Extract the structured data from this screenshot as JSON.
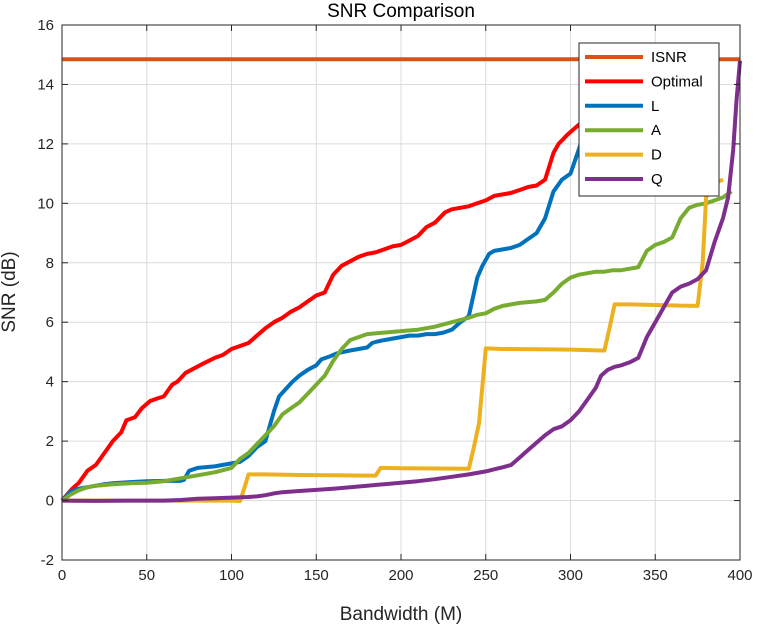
{
  "chart_data": {
    "type": "line",
    "title": "SNR Comparison",
    "xlabel": "Bandwidth (M)",
    "ylabel": "SNR (dB)",
    "xlim": [
      0,
      400
    ],
    "ylim": [
      -2,
      16
    ],
    "xticks": [
      0,
      50,
      100,
      150,
      200,
      250,
      300,
      350,
      400
    ],
    "yticks": [
      -2,
      0,
      2,
      4,
      6,
      8,
      10,
      12,
      14,
      16
    ],
    "grid": true,
    "legend_position": "top-right",
    "series": [
      {
        "name": "ISNR",
        "color": "#D95319",
        "x": [
          0,
          400
        ],
        "y": [
          14.85,
          14.85
        ]
      },
      {
        "name": "Optimal",
        "color": "#FF0000",
        "x": [
          0,
          3,
          6,
          10,
          15,
          20,
          25,
          30,
          35,
          38,
          43,
          47,
          52,
          57,
          60,
          65,
          68,
          73,
          78,
          83,
          90,
          95,
          100,
          105,
          110,
          116,
          120,
          125,
          130,
          135,
          140,
          145,
          150,
          155,
          160,
          165,
          170,
          175,
          180,
          185,
          190,
          195,
          200,
          205,
          210,
          215,
          220,
          226,
          230,
          235,
          240,
          245,
          250,
          255,
          260,
          265,
          270,
          275,
          280,
          285,
          290,
          293,
          298,
          302,
          306,
          310
        ],
        "y": [
          0,
          0.2,
          0.4,
          0.6,
          1.0,
          1.2,
          1.6,
          2.0,
          2.3,
          2.7,
          2.8,
          3.1,
          3.35,
          3.45,
          3.5,
          3.9,
          4.0,
          4.3,
          4.45,
          4.6,
          4.8,
          4.9,
          5.1,
          5.2,
          5.3,
          5.6,
          5.8,
          6.0,
          6.15,
          6.35,
          6.5,
          6.7,
          6.9,
          7.0,
          7.6,
          7.9,
          8.05,
          8.2,
          8.3,
          8.35,
          8.45,
          8.55,
          8.6,
          8.75,
          8.9,
          9.2,
          9.35,
          9.7,
          9.8,
          9.85,
          9.9,
          10.0,
          10.1,
          10.25,
          10.3,
          10.35,
          10.45,
          10.55,
          10.6,
          10.8,
          11.7,
          12.0,
          12.3,
          12.5,
          12.7,
          12.9
        ]
      },
      {
        "name": "L",
        "color": "#0072BD",
        "x": [
          0,
          5,
          10,
          15,
          20,
          25,
          30,
          40,
          50,
          60,
          70,
          72,
          75,
          80,
          90,
          95,
          100,
          105,
          110,
          115,
          120,
          125,
          128,
          132,
          136,
          140,
          145,
          150,
          153,
          158,
          162,
          166,
          170,
          175,
          180,
          183,
          186,
          190,
          195,
          200,
          205,
          210,
          215,
          220,
          225,
          230,
          235,
          240,
          245,
          248,
          252,
          255,
          260,
          265,
          270,
          275,
          280,
          285,
          290,
          295,
          300,
          303,
          306,
          310
        ],
        "y": [
          0,
          0.3,
          0.4,
          0.45,
          0.5,
          0.55,
          0.58,
          0.62,
          0.65,
          0.66,
          0.66,
          0.7,
          1.0,
          1.1,
          1.15,
          1.2,
          1.25,
          1.3,
          1.5,
          1.8,
          2.0,
          3.0,
          3.5,
          3.75,
          4.0,
          4.2,
          4.4,
          4.55,
          4.75,
          4.85,
          4.95,
          5.0,
          5.05,
          5.1,
          5.15,
          5.3,
          5.35,
          5.4,
          5.45,
          5.5,
          5.55,
          5.55,
          5.6,
          5.6,
          5.65,
          5.75,
          6.0,
          6.2,
          7.5,
          7.9,
          8.3,
          8.4,
          8.45,
          8.5,
          8.6,
          8.8,
          9.0,
          9.5,
          10.4,
          10.8,
          11.0,
          11.5,
          12.0,
          12.5
        ]
      },
      {
        "name": "A",
        "color": "#77AC30",
        "x": [
          0,
          5,
          10,
          15,
          20,
          30,
          40,
          50,
          60,
          70,
          80,
          90,
          100,
          105,
          110,
          115,
          120,
          125,
          130,
          135,
          140,
          145,
          150,
          155,
          160,
          165,
          170,
          175,
          180,
          190,
          200,
          210,
          220,
          230,
          240,
          245,
          250,
          255,
          260,
          265,
          270,
          280,
          285,
          290,
          295,
          300,
          305,
          310,
          315,
          320,
          325,
          330,
          335,
          340,
          345,
          350,
          355,
          360,
          365,
          370,
          375,
          380,
          385,
          390,
          395
        ],
        "y": [
          0,
          0.2,
          0.35,
          0.45,
          0.5,
          0.55,
          0.58,
          0.6,
          0.65,
          0.75,
          0.85,
          0.95,
          1.1,
          1.4,
          1.6,
          1.9,
          2.2,
          2.5,
          2.9,
          3.1,
          3.3,
          3.6,
          3.9,
          4.2,
          4.7,
          5.1,
          5.4,
          5.5,
          5.6,
          5.65,
          5.7,
          5.75,
          5.85,
          6.0,
          6.15,
          6.25,
          6.3,
          6.45,
          6.55,
          6.6,
          6.65,
          6.7,
          6.75,
          7.0,
          7.3,
          7.5,
          7.6,
          7.65,
          7.7,
          7.7,
          7.75,
          7.75,
          7.8,
          7.85,
          8.4,
          8.6,
          8.7,
          8.85,
          9.5,
          9.85,
          9.95,
          10.0,
          10.1,
          10.2,
          10.4
        ]
      },
      {
        "name": "D",
        "color": "#EDB120",
        "x": [
          0,
          20,
          40,
          60,
          80,
          100,
          105,
          108,
          110,
          120,
          140,
          160,
          180,
          185,
          188,
          200,
          220,
          240,
          243,
          246,
          250,
          260,
          280,
          300,
          318,
          320,
          323,
          326,
          335,
          350,
          365,
          375,
          378,
          380,
          383,
          386,
          390
        ],
        "y": [
          0,
          0,
          0,
          0,
          0,
          0,
          -0.02,
          0.5,
          0.88,
          0.88,
          0.86,
          0.85,
          0.84,
          0.84,
          1.1,
          1.09,
          1.08,
          1.07,
          1.8,
          2.6,
          5.12,
          5.1,
          5.09,
          5.08,
          5.05,
          5.05,
          5.8,
          6.6,
          6.6,
          6.58,
          6.56,
          6.55,
          8.0,
          10.2,
          10.5,
          10.7,
          10.8
        ]
      },
      {
        "name": "Q",
        "color": "#7E2F8E",
        "x": [
          0,
          20,
          40,
          60,
          70,
          80,
          90,
          100,
          110,
          115,
          120,
          125,
          130,
          140,
          150,
          160,
          170,
          180,
          190,
          200,
          210,
          220,
          230,
          240,
          250,
          255,
          260,
          265,
          270,
          275,
          280,
          285,
          290,
          295,
          300,
          305,
          310,
          315,
          318,
          322,
          326,
          330,
          335,
          340,
          345,
          350,
          355,
          360,
          365,
          370,
          375,
          380,
          385,
          390,
          393,
          396,
          398,
          400
        ],
        "y": [
          0,
          -0.01,
          0,
          0,
          0.02,
          0.06,
          0.08,
          0.1,
          0.12,
          0.14,
          0.18,
          0.24,
          0.28,
          0.32,
          0.36,
          0.4,
          0.45,
          0.5,
          0.55,
          0.6,
          0.65,
          0.72,
          0.8,
          0.88,
          0.98,
          1.05,
          1.12,
          1.2,
          1.45,
          1.7,
          1.95,
          2.2,
          2.4,
          2.5,
          2.7,
          3.0,
          3.4,
          3.8,
          4.2,
          4.4,
          4.5,
          4.55,
          4.65,
          4.8,
          5.5,
          6.0,
          6.5,
          7.0,
          7.2,
          7.3,
          7.45,
          7.75,
          8.7,
          9.5,
          10.2,
          11.8,
          13.5,
          14.8
        ]
      }
    ]
  }
}
